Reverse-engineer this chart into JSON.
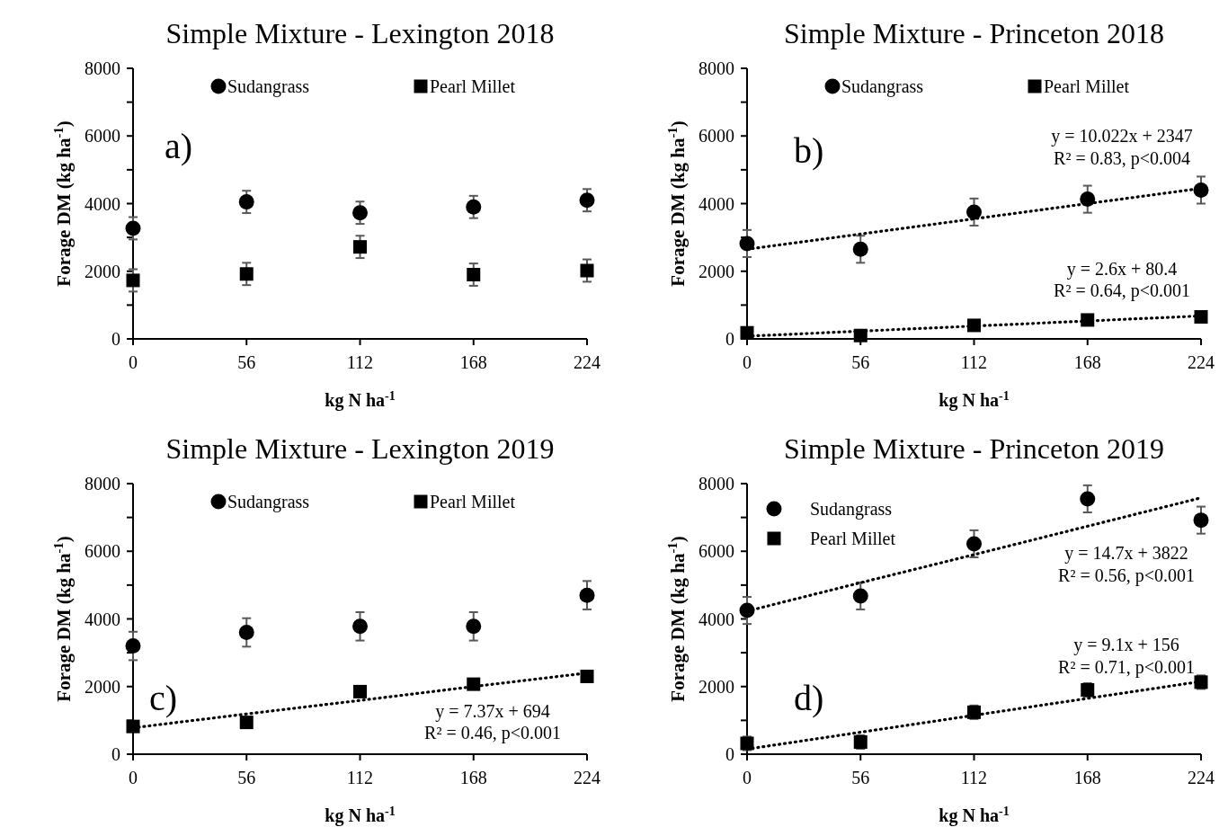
{
  "chart_data": [
    {
      "type": "scatter",
      "title": "Simple Mixture - Lexington 2018",
      "xlabel": "kg N ha$^{-1}$",
      "ylabel": "Forage DM (kg ha$^{-1}$)",
      "x": [
        0,
        56,
        112,
        168,
        224
      ],
      "xlim": [
        0,
        224
      ],
      "xticks": [
        0,
        56,
        112,
        168,
        224
      ],
      "ylim": [
        0,
        8000
      ],
      "yticks": [
        0,
        {
          "value": 1000,
          "label": null
        },
        2000,
        {
          "value": 3000,
          "label": null
        },
        4000,
        {
          "value": 5000,
          "label": null
        },
        6000,
        {
          "value": 7000,
          "label": null
        },
        8000
      ],
      "legend": "top",
      "grid": false,
      "annotations": [
        "a)"
      ],
      "series": [
        {
          "name": "Sudangrass",
          "color": "#000000",
          "marker": "circle",
          "values": [
            3270,
            4050,
            3730,
            3900,
            4100
          ],
          "errors": [
            330,
            330,
            330,
            330,
            330
          ]
        },
        {
          "name": "Pearl Millet",
          "color": "#000000",
          "marker": "square",
          "values": [
            1730,
            1920,
            2720,
            1900,
            2020
          ],
          "errors": [
            330,
            330,
            330,
            330,
            330
          ]
        }
      ]
    },
    {
      "type": "scatter",
      "title": "Simple Mixture - Princeton 2018",
      "xlabel": "kg N ha$^{-1}$",
      "ylabel": "Forage DM (kg ha$^{-1}$)",
      "x": [
        0,
        56,
        112,
        168,
        224
      ],
      "xlim": [
        0,
        224
      ],
      "xticks": [
        0,
        56,
        112,
        168,
        224
      ],
      "ylim": [
        0,
        8000
      ],
      "yticks": [
        0,
        {
          "value": 1000,
          "label": null
        },
        2000,
        {
          "value": 3000,
          "label": null
        },
        4000,
        {
          "value": 5000,
          "label": null
        },
        6000,
        {
          "value": 7000,
          "label": null
        },
        8000
      ],
      "legend": "top",
      "grid": false,
      "annotations": [
        "b)",
        "y = 10.022x + 2347",
        "R² = 0.83, p<0.004",
        "y = 2.6x + 80.4",
        "R² = 0.64, p<0.001"
      ],
      "series": [
        {
          "name": "Sudangrass",
          "color": "#000000",
          "marker": "circle",
          "values": [
            2820,
            2650,
            3750,
            4130,
            4400
          ],
          "errors": [
            400,
            400,
            400,
            400,
            400
          ]
        },
        {
          "name": "Pearl Millet",
          "color": "#000000",
          "marker": "square",
          "values": [
            180,
            100,
            400,
            560,
            650
          ]
        },
        {
          "type": "line",
          "color": "#000000",
          "line_style": "dotted",
          "marker": "none",
          "values": [
            2650,
            3100,
            3550,
            4000,
            4450
          ]
        },
        {
          "type": "line",
          "color": "#000000",
          "line_style": "dotted",
          "marker": "none",
          "values": [
            80,
            230,
            380,
            530,
            680
          ]
        }
      ]
    },
    {
      "type": "scatter",
      "title": "Simple Mixture - Lexington 2019",
      "xlabel": "kg N ha$^{-1}$",
      "ylabel": "Forage DM (kg ha$^{-1}$)",
      "x": [
        0,
        56,
        112,
        168,
        224
      ],
      "xlim": [
        0,
        224
      ],
      "xticks": [
        0,
        56,
        112,
        168,
        224
      ],
      "ylim": [
        0,
        8000
      ],
      "yticks": [
        0,
        {
          "value": 1000,
          "label": null
        },
        2000,
        {
          "value": 3000,
          "label": null
        },
        4000,
        {
          "value": 5000,
          "label": null
        },
        6000,
        {
          "value": 7000,
          "label": null
        },
        8000
      ],
      "legend": "top",
      "grid": false,
      "annotations": [
        "c)",
        "y = 7.37x + 694",
        "R² = 0.46, p<0.001"
      ],
      "series": [
        {
          "name": "Sudangrass",
          "color": "#000000",
          "marker": "circle",
          "values": [
            3200,
            3600,
            3780,
            3780,
            4700
          ],
          "errors": [
            420,
            420,
            420,
            420,
            420
          ]
        },
        {
          "name": "Pearl Millet",
          "color": "#000000",
          "marker": "square",
          "values": [
            820,
            940,
            1850,
            2070,
            2300
          ]
        },
        {
          "type": "line",
          "color": "#000000",
          "line_style": "dotted",
          "marker": "none",
          "values": [
            780,
            1190,
            1590,
            2000,
            2400
          ]
        }
      ]
    },
    {
      "type": "scatter",
      "title": "Simple Mixture - Princeton 2019",
      "xlabel": "kg N ha$^{-1}$",
      "ylabel": "Forage DM (kg ha$^{-1}$)",
      "x": [
        0,
        56,
        112,
        168,
        224
      ],
      "xlim": [
        0,
        224
      ],
      "xticks": [
        0,
        56,
        112,
        168,
        224
      ],
      "ylim": [
        0,
        8000
      ],
      "yticks": [
        0,
        {
          "value": 1000,
          "label": null
        },
        2000,
        {
          "value": 3000,
          "label": null
        },
        4000,
        {
          "value": 5000,
          "label": null
        },
        6000,
        {
          "value": 7000,
          "label": null
        },
        8000
      ],
      "legend": "top left",
      "grid": false,
      "annotations": [
        "d)",
        "y = 14.7x + 3822",
        "R² = 0.56, p<0.001",
        "y = 9.1x + 156",
        "R² = 0.71, p<0.001"
      ],
      "series": [
        {
          "name": "Sudangrass",
          "color": "#000000",
          "marker": "circle",
          "values": [
            4250,
            4680,
            6220,
            7550,
            6920
          ],
          "errors": [
            400,
            400,
            400,
            400,
            400
          ]
        },
        {
          "name": "Pearl Millet",
          "color": "#000000",
          "marker": "square",
          "values": [
            320,
            360,
            1240,
            1900,
            2130
          ],
          "errors": [
            200,
            200,
            200,
            200,
            200
          ]
        },
        {
          "type": "line",
          "color": "#000000",
          "line_style": "dotted",
          "marker": "none",
          "values": [
            4230,
            5070,
            5900,
            6740,
            7580
          ]
        },
        {
          "type": "line",
          "color": "#000000",
          "line_style": "dotted",
          "marker": "none",
          "values": [
            150,
            650,
            1150,
            1650,
            2150
          ]
        }
      ]
    }
  ]
}
